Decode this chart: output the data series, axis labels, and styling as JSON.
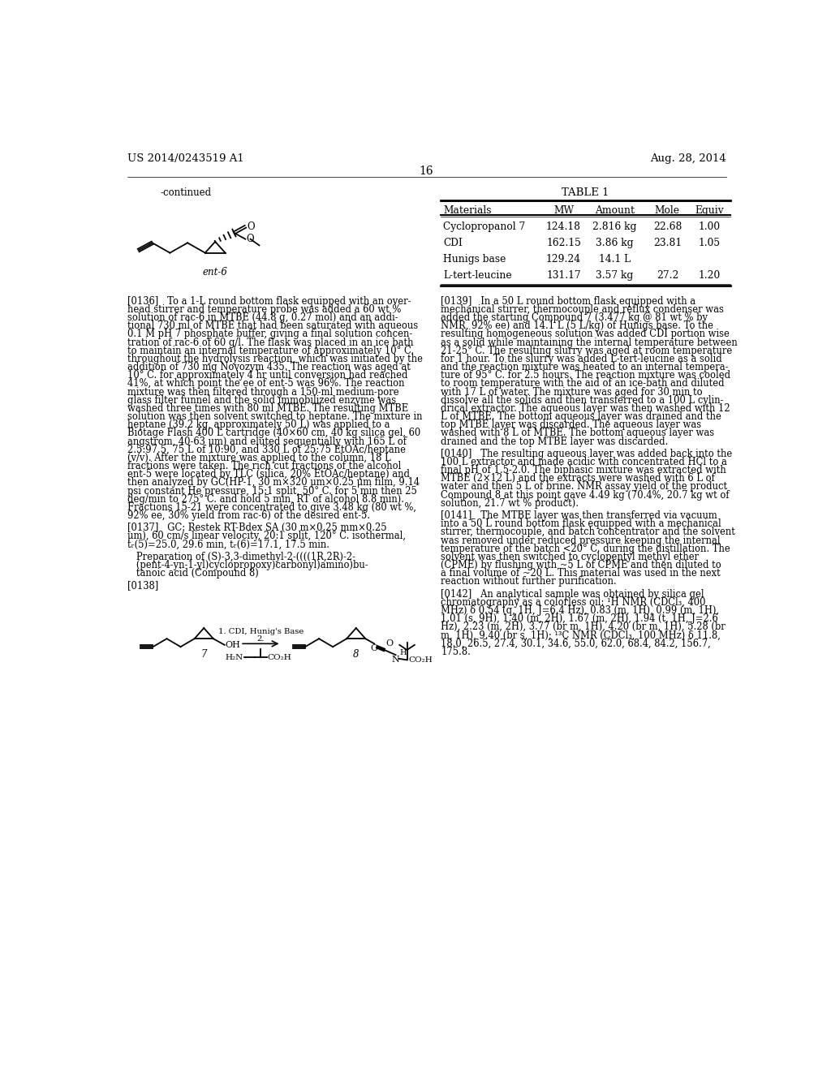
{
  "page_number": "16",
  "patent_number": "US 2014/0243519 A1",
  "patent_date": "Aug. 28, 2014",
  "continued_label": "-continued",
  "table_title": "TABLE 1",
  "table_headers": [
    "Materials",
    "MW",
    "Amount",
    "Mole",
    "Equiv"
  ],
  "table_rows": [
    [
      "Cyclopropanol 7",
      "124.18",
      "2.816 kg",
      "22.68",
      "1.00"
    ],
    [
      "CDI",
      "162.15",
      "3.86 kg",
      "23.81",
      "1.05"
    ],
    [
      "Hunigs base",
      "129.24",
      "14.1 L",
      "",
      ""
    ],
    [
      "L-tert-leucine",
      "131.17",
      "3.57 kg",
      "27.2",
      "1.20"
    ]
  ],
  "left_col_lines": [
    "[0136]   To a 1-L round bottom flask equipped with an over-",
    "head stirrer and temperature probe was added a 60 wt %",
    "solution of rac-6 in MTBE (44.8 g, 0.27 mol) and an addi-",
    "tional 730 ml of MTBE that had been saturated with aqueous",
    "0.1 M pH 7 phosphate buffer, giving a final solution concen-",
    "tration of rac-6 of 60 g/l. The flask was placed in an ice bath",
    "to maintain an internal temperature of approximately 10° C.",
    "throughout the hydrolysis reaction, which was initiated by the",
    "addition of 730 mg Novozym 435. The reaction was aged at",
    "10° C. for approximately 4 hr until conversion had reached",
    "41%, at which point the ee of ent-5 was 96%. The reaction",
    "mixture was then filtered through a 150-ml medium-pore",
    "glass filter funnel and the solid immobilized enzyme was",
    "washed three times with 80 ml MTBE. The resulting MTBE",
    "solution was then solvent switched to heptane. The mixture in",
    "heptane (39.2 kg, approximately 50 L) was applied to a",
    "Biotage Flash 400 L cartridge (40×60 cm, 40 kg silica gel, 60",
    "angstrom, 40-63 μm) and eluted sequentially with 165 L of",
    "2.5:97.5, 75 L of 10:90, and 330 L of 25:75 EtOAc/heptane",
    "(v/v). After the mixture was applied to the column, 18 L",
    "fractions were taken. The rich cut fractions of the alcohol",
    "ent-5 were located by TLC (silica, 20% EtOAc/heptane) and",
    "then analyzed by GC(HP-1, 30 m×320 μm×0.25 μm film, 9.14",
    "psi constant He pressure, 15:1 split, 50° C. for 5 min then 25",
    "deg/min to 275° C. and hold 5 min, RT of alcohol 8.8 min).",
    "Fractions 15-21 were concentrated to give 3.48 kg (80 wt %,",
    "92% ee, 30% yield from rac-6) of the desired ent-5.",
    "",
    "[0137]   GC: Restek RT-Bdex SA (30 m×0.25 mm×0.25",
    "μm), 60 cm/s linear velocity, 20:1 split, 120° C. isothermal,",
    "tᵣ(5)=25.0, 29.6 min, tᵣ(6)=17.1, 17.5 min.",
    "",
    "   Preparation of (S)-3,3-dimethyl-2-((((1R,2R)-2-",
    "   (pent-4-yn-1-yl)cyclopropoxy)carbonyl)amino)bu-",
    "   tanoic acid (Compound 8)",
    "",
    "[0138]"
  ],
  "right_col_lines": [
    "[0139]   In a 50 L round bottom flask equipped with a",
    "mechanical stirrer, thermocouple and reflux condenser was",
    "added the starting Compound 7 (3.477 kg @ 81 wt % by",
    "NMR, 92% ee) and 14.1 L (5 L/kg) of Hunigs base. To the",
    "resulting homogeneous solution was added CDI portion wise",
    "as a solid while maintaining the internal temperature between",
    "21-25° C. The resulting slurry was aged at room temperature",
    "for 1 hour. To the slurry was added L-tert-leucine as a solid",
    "and the reaction mixture was heated to an internal tempera-",
    "ture of 95° C. for 2.5 hours. The reaction mixture was cooled",
    "to room temperature with the aid of an ice-bath and diluted",
    "with 17 L of water. The mixture was aged for 30 min to",
    "dissolve all the solids and then transferred to a 100 L cylin-",
    "drical extractor. The aqueous layer was then washed with 12",
    "L of MTBE. The bottom aqueous layer was drained and the",
    "top MTBE layer was discarded. The aqueous layer was",
    "washed with 8 L of MTBE. The bottom aqueous layer was",
    "drained and the top MTBE layer was discarded.",
    "",
    "[0140]   The resulting aqueous layer was added back into the",
    "100 L extractor and made acidic with concentrated HCl to a",
    "final pH of 1.5-2.0. The biphasic mixture was extracted with",
    "MTBE (2×12 L) and the extracts were washed with 6 L of",
    "water and then 5 L of brine. NMR assay yield of the product",
    "Compound 8 at this point gave 4.49 kg (70.4%, 20.7 kg wt of",
    "solution, 21.7 wt % product).",
    "",
    "[0141]   The MTBE layer was then transferred via vacuum",
    "into a 50 L round bottom flask equipped with a mechanical",
    "stirrer, thermocouple, and batch concentrator and the solvent",
    "was removed under reduced pressure keeping the internal",
    "temperature of the batch <20° C. during the distillation. The",
    "solvent was then switched to cyclopentyl methyl ether",
    "(CPME) by flushing with ~5 L of CPME and then diluted to",
    "a final volume of ~20 L. This material was used in the next",
    "reaction without further purification.",
    "",
    "[0142]   An analytical sample was obtained by silica gel",
    "chromatography as a colorless oil: ¹H NMR (CDCl₃, 400",
    "MHz) δ 0.54 (q, 1H, J=6.4 Hz), 0.83 (m, 1H), 0.99 (m, 1H),",
    "1.01 (s, 9H), 1.40 (m, 2H), 1.67 (m, 2H), 1.94 (t, 1H, J=2.6",
    "Hz), 2.23 (m, 2H), 3.77 (br m, 1H), 4.20 (br m, 1H), 5.28 (br",
    "m, 1H), 9.40 (br s, 1H); ¹³C NMR (CDCl₃, 100 MHz) δ 11.8,",
    "18.0, 26.5, 27.4, 30.1, 34.6, 55.0, 62.0, 68.4, 84.2, 156.7,",
    "175.8."
  ],
  "bg_color": "#ffffff",
  "text_color": "#000000"
}
